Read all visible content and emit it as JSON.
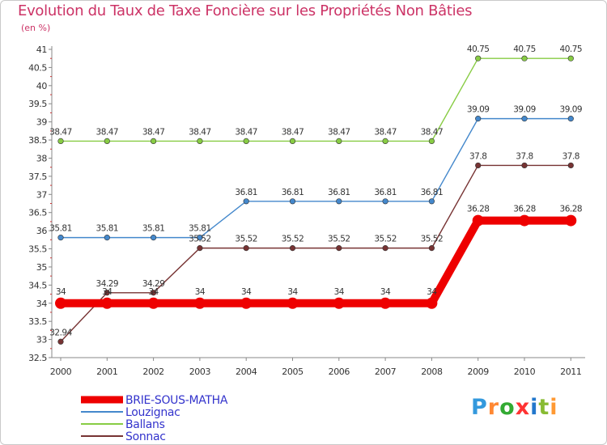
{
  "chart_data": {
    "type": "line",
    "title": "Evolution du Taux de Taxe Foncière sur les Propriétés Non Bâties",
    "ylabel": "(en %)",
    "xlabel": "",
    "ylim": [
      32.5,
      41
    ],
    "yticks": [
      "32.5",
      "33",
      "33.5",
      "34",
      "34.5",
      "35",
      "35.5",
      "36",
      "36.5",
      "37",
      "37.5",
      "38",
      "38.5",
      "39",
      "39.5",
      "40",
      "40.5",
      "41"
    ],
    "categories": [
      "2000",
      "2001",
      "2002",
      "2003",
      "2004",
      "2005",
      "2006",
      "2007",
      "2008",
      "2009",
      "2010",
      "2011"
    ],
    "series": [
      {
        "name": "Ballans",
        "color": "#88cc44",
        "emphasis": false,
        "values": [
          38.47,
          38.47,
          38.47,
          38.47,
          38.47,
          38.47,
          38.47,
          38.47,
          38.47,
          40.75,
          40.75,
          40.75
        ],
        "labels": [
          "38.47",
          "38.47",
          "38.47",
          "38.47",
          "38.47",
          "38.47",
          "38.47",
          "38.47",
          "38.47",
          "40.75",
          "40.75",
          "40.75"
        ]
      },
      {
        "name": "Louzignac",
        "color": "#4488cc",
        "emphasis": false,
        "values": [
          35.81,
          35.81,
          35.81,
          35.81,
          36.81,
          36.81,
          36.81,
          36.81,
          36.81,
          39.09,
          39.09,
          39.09
        ],
        "labels": [
          "35.81",
          "35.81",
          "35.81",
          "35.81",
          "36.81",
          "36.81",
          "36.81",
          "36.81",
          "36.81",
          "39.09",
          "39.09",
          "39.09"
        ]
      },
      {
        "name": "Sonnac",
        "color": "#773333",
        "emphasis": false,
        "values": [
          32.94,
          34.29,
          34.29,
          35.52,
          35.52,
          35.52,
          35.52,
          35.52,
          35.52,
          37.8,
          37.8,
          37.8
        ],
        "labels": [
          "32.94",
          "34.29",
          "34.29",
          "35.52",
          "35.52",
          "35.52",
          "35.52",
          "35.52",
          "35.52",
          "37.8",
          "37.8",
          "37.8"
        ]
      },
      {
        "name": "BRIE-SOUS-MATHA",
        "color": "#ee0000",
        "emphasis": true,
        "values": [
          34,
          34,
          34,
          34,
          34,
          34,
          34,
          34,
          34,
          36.28,
          36.28,
          36.28
        ],
        "labels": [
          "34",
          "34",
          "34",
          "34",
          "34",
          "34",
          "34",
          "34",
          "34",
          "36.28",
          "36.28",
          "36.28"
        ]
      }
    ],
    "legend": [
      "BRIE-SOUS-MATHA",
      "Louzignac",
      "Ballans",
      "Sonnac"
    ],
    "legend_position": "bottom-left",
    "grid": false
  },
  "brand": {
    "text": "Proxiti"
  }
}
